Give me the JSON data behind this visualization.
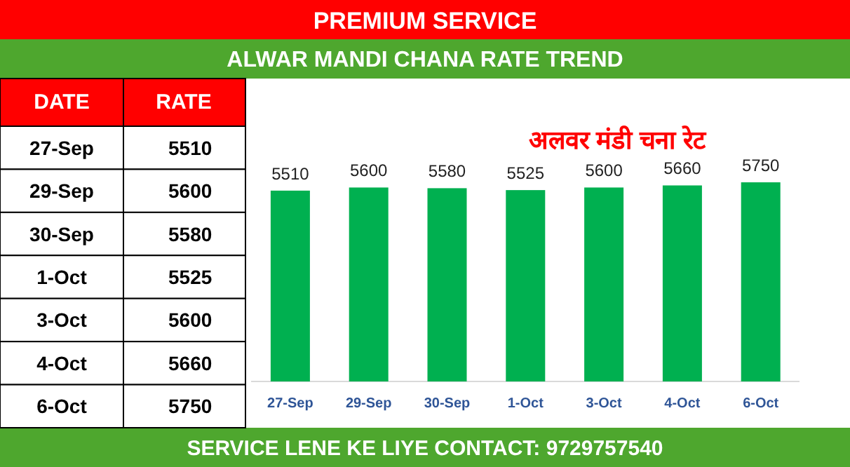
{
  "chart_data": [
    {
      "type": "bar",
      "title": "ALWAR MANDI CHANA RATE TREND",
      "subtitle": "अलवर मंडी चना रेट",
      "annotations": [
        "PREMIUM SERVICE",
        "SERVICE LENE KE LIYE CONTACT: 9729757540"
      ],
      "categories": [
        "27-Sep",
        "29-Sep",
        "30-Sep",
        "1-Oct",
        "3-Oct",
        "4-Oct",
        "6-Oct"
      ],
      "values": [
        5510,
        5600,
        5580,
        5525,
        5600,
        5660,
        5750
      ],
      "color": "#00b050",
      "data_labels": true
    },
    {
      "type": "other",
      "annotations": [
        "DATE",
        "RATE"
      ],
      "categories": [
        "27-Sep",
        "29-Sep",
        "30-Sep",
        "1-Oct",
        "3-Oct",
        "4-Oct",
        "6-Oct"
      ],
      "values": [
        5510,
        5600,
        5580,
        5525,
        5600,
        5660,
        5750
      ],
      "data_labels": true
    }
  ]
}
